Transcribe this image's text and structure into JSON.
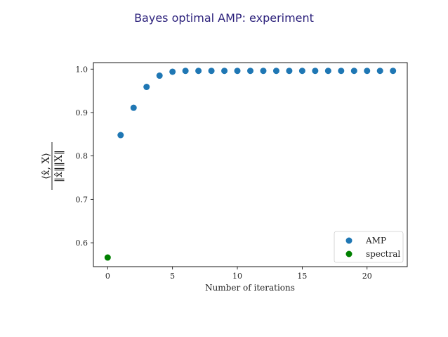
{
  "chart_data": {
    "type": "scatter",
    "title": "Bayes optimal AMP: experiment",
    "xlabel": "Number of iterations",
    "ylabel": "⟨x̂, X⟩ / (‖x̂‖ ‖X‖)",
    "ylabel_numerator": "⟨x̂, X⟩",
    "ylabel_denominator": "‖x̂‖‖X‖",
    "xlim": [
      -1.1,
      23.1
    ],
    "ylim": [
      0.545,
      1.015
    ],
    "xticks": [
      0,
      5,
      10,
      15,
      20
    ],
    "xtick_labels": [
      "0",
      "5",
      "10",
      "15",
      "20"
    ],
    "yticks": [
      0.6,
      0.7,
      0.8,
      0.9,
      1.0
    ],
    "ytick_labels": [
      "0.6",
      "0.7",
      "0.8",
      "0.9",
      "1.0"
    ],
    "grid": false,
    "legend_position": "lower-right",
    "series": [
      {
        "name": "AMP",
        "color": "#1f77b4",
        "x": [
          1,
          2,
          3,
          4,
          5,
          6,
          7,
          8,
          9,
          10,
          11,
          12,
          13,
          14,
          15,
          16,
          17,
          18,
          19,
          20,
          21,
          22
        ],
        "y": [
          0.848,
          0.911,
          0.959,
          0.985,
          0.994,
          0.996,
          0.996,
          0.996,
          0.996,
          0.996,
          0.996,
          0.996,
          0.996,
          0.996,
          0.996,
          0.996,
          0.996,
          0.996,
          0.996,
          0.996,
          0.996,
          0.996
        ]
      },
      {
        "name": "spectral",
        "color": "#008000",
        "x": [
          0
        ],
        "y": [
          0.566
        ]
      }
    ]
  }
}
